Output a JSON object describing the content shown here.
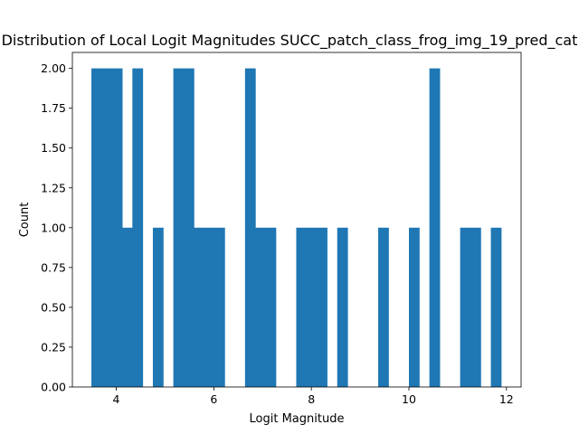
{
  "chart_data": {
    "type": "bar",
    "title": "Distribution of Local Logit Magnitudes SUCC_patch_class_frog_img_19_pred_cat",
    "xlabel": "Logit Magnitude",
    "ylabel": "Count",
    "xlim": [
      3.1,
      12.3
    ],
    "ylim": [
      0,
      2.1
    ],
    "xticks": [
      4,
      6,
      8,
      10,
      12
    ],
    "yticks": [
      "0.00",
      "0.25",
      "0.50",
      "0.75",
      "1.00",
      "1.25",
      "1.50",
      "1.75",
      "2.00"
    ],
    "bin_width": 0.21,
    "color": "#1f77b4",
    "grid": false,
    "bins": [
      {
        "x": 3.49,
        "count": 2
      },
      {
        "x": 3.7,
        "count": 2
      },
      {
        "x": 3.91,
        "count": 2
      },
      {
        "x": 4.12,
        "count": 1
      },
      {
        "x": 4.33,
        "count": 2
      },
      {
        "x": 4.75,
        "count": 1
      },
      {
        "x": 5.17,
        "count": 2
      },
      {
        "x": 5.38,
        "count": 2
      },
      {
        "x": 5.59,
        "count": 1
      },
      {
        "x": 5.8,
        "count": 1
      },
      {
        "x": 6.01,
        "count": 1
      },
      {
        "x": 6.64,
        "count": 2
      },
      {
        "x": 6.85,
        "count": 1
      },
      {
        "x": 7.06,
        "count": 1
      },
      {
        "x": 7.69,
        "count": 1
      },
      {
        "x": 7.9,
        "count": 1
      },
      {
        "x": 8.11,
        "count": 1
      },
      {
        "x": 8.53,
        "count": 1
      },
      {
        "x": 9.37,
        "count": 1
      },
      {
        "x": 10.0,
        "count": 1
      },
      {
        "x": 10.42,
        "count": 2
      },
      {
        "x": 11.05,
        "count": 1
      },
      {
        "x": 11.26,
        "count": 1
      },
      {
        "x": 11.68,
        "count": 1
      }
    ]
  }
}
